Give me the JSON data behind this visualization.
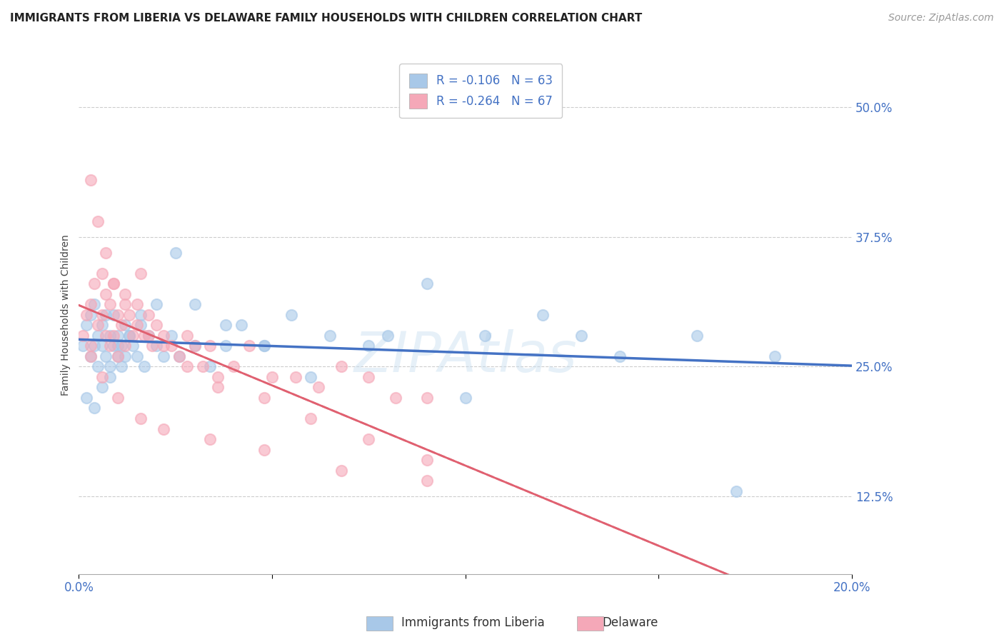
{
  "title": "IMMIGRANTS FROM LIBERIA VS DELAWARE FAMILY HOUSEHOLDS WITH CHILDREN CORRELATION CHART",
  "source": "Source: ZipAtlas.com",
  "ylabel": "Family Households with Children",
  "legend_label1": "Immigrants from Liberia",
  "legend_label2": "Delaware",
  "xlim": [
    0.0,
    0.2
  ],
  "ylim": [
    0.05,
    0.55
  ],
  "yticks": [
    0.125,
    0.25,
    0.375,
    0.5
  ],
  "ytick_labels": [
    "12.5%",
    "25.0%",
    "37.5%",
    "50.0%"
  ],
  "xticks": [
    0.0,
    0.05,
    0.1,
    0.15,
    0.2
  ],
  "xtick_labels": [
    "0.0%",
    "",
    "",
    "",
    "20.0%"
  ],
  "color_blue": "#A8C8E8",
  "color_pink": "#F5A8B8",
  "line_blue": "#4472C4",
  "line_pink": "#E06070",
  "R1": -0.106,
  "N1": 63,
  "R2": -0.264,
  "N2": 67,
  "blue_scatter_x": [
    0.001,
    0.002,
    0.003,
    0.003,
    0.004,
    0.004,
    0.005,
    0.005,
    0.006,
    0.006,
    0.007,
    0.007,
    0.008,
    0.008,
    0.009,
    0.009,
    0.01,
    0.01,
    0.011,
    0.011,
    0.012,
    0.012,
    0.013,
    0.014,
    0.015,
    0.016,
    0.017,
    0.018,
    0.02,
    0.022,
    0.024,
    0.026,
    0.03,
    0.034,
    0.038,
    0.042,
    0.048,
    0.055,
    0.065,
    0.075,
    0.09,
    0.105,
    0.12,
    0.14,
    0.16,
    0.18,
    0.002,
    0.004,
    0.006,
    0.008,
    0.01,
    0.013,
    0.016,
    0.02,
    0.025,
    0.03,
    0.038,
    0.048,
    0.06,
    0.08,
    0.1,
    0.13,
    0.17
  ],
  "blue_scatter_y": [
    0.27,
    0.29,
    0.26,
    0.3,
    0.27,
    0.31,
    0.28,
    0.25,
    0.29,
    0.27,
    0.3,
    0.26,
    0.28,
    0.24,
    0.27,
    0.3,
    0.26,
    0.28,
    0.27,
    0.25,
    0.29,
    0.26,
    0.28,
    0.27,
    0.26,
    0.29,
    0.25,
    0.28,
    0.27,
    0.26,
    0.28,
    0.26,
    0.27,
    0.25,
    0.27,
    0.29,
    0.27,
    0.3,
    0.28,
    0.27,
    0.33,
    0.28,
    0.3,
    0.26,
    0.28,
    0.26,
    0.22,
    0.21,
    0.23,
    0.25,
    0.27,
    0.28,
    0.3,
    0.31,
    0.36,
    0.31,
    0.29,
    0.27,
    0.24,
    0.28,
    0.22,
    0.28,
    0.13
  ],
  "pink_scatter_x": [
    0.001,
    0.002,
    0.003,
    0.003,
    0.004,
    0.005,
    0.006,
    0.006,
    0.007,
    0.007,
    0.008,
    0.008,
    0.009,
    0.009,
    0.01,
    0.01,
    0.011,
    0.012,
    0.012,
    0.013,
    0.014,
    0.015,
    0.016,
    0.017,
    0.018,
    0.019,
    0.02,
    0.022,
    0.024,
    0.026,
    0.028,
    0.03,
    0.032,
    0.034,
    0.036,
    0.04,
    0.044,
    0.05,
    0.056,
    0.062,
    0.068,
    0.075,
    0.082,
    0.09,
    0.003,
    0.005,
    0.007,
    0.009,
    0.012,
    0.015,
    0.018,
    0.022,
    0.028,
    0.036,
    0.048,
    0.06,
    0.075,
    0.09,
    0.003,
    0.006,
    0.01,
    0.016,
    0.022,
    0.034,
    0.048,
    0.068,
    0.09
  ],
  "pink_scatter_y": [
    0.28,
    0.3,
    0.31,
    0.27,
    0.33,
    0.29,
    0.34,
    0.3,
    0.32,
    0.28,
    0.31,
    0.27,
    0.33,
    0.28,
    0.3,
    0.26,
    0.29,
    0.32,
    0.27,
    0.3,
    0.28,
    0.31,
    0.34,
    0.28,
    0.3,
    0.27,
    0.29,
    0.28,
    0.27,
    0.26,
    0.28,
    0.27,
    0.25,
    0.27,
    0.24,
    0.25,
    0.27,
    0.24,
    0.24,
    0.23,
    0.25,
    0.24,
    0.22,
    0.22,
    0.43,
    0.39,
    0.36,
    0.33,
    0.31,
    0.29,
    0.28,
    0.27,
    0.25,
    0.23,
    0.22,
    0.2,
    0.18,
    0.16,
    0.26,
    0.24,
    0.22,
    0.2,
    0.19,
    0.18,
    0.17,
    0.15,
    0.14
  ],
  "watermark": "ZIPAtlas",
  "title_fontsize": 11,
  "axis_label_fontsize": 10,
  "tick_fontsize": 12,
  "legend_fontsize": 12,
  "source_fontsize": 10
}
